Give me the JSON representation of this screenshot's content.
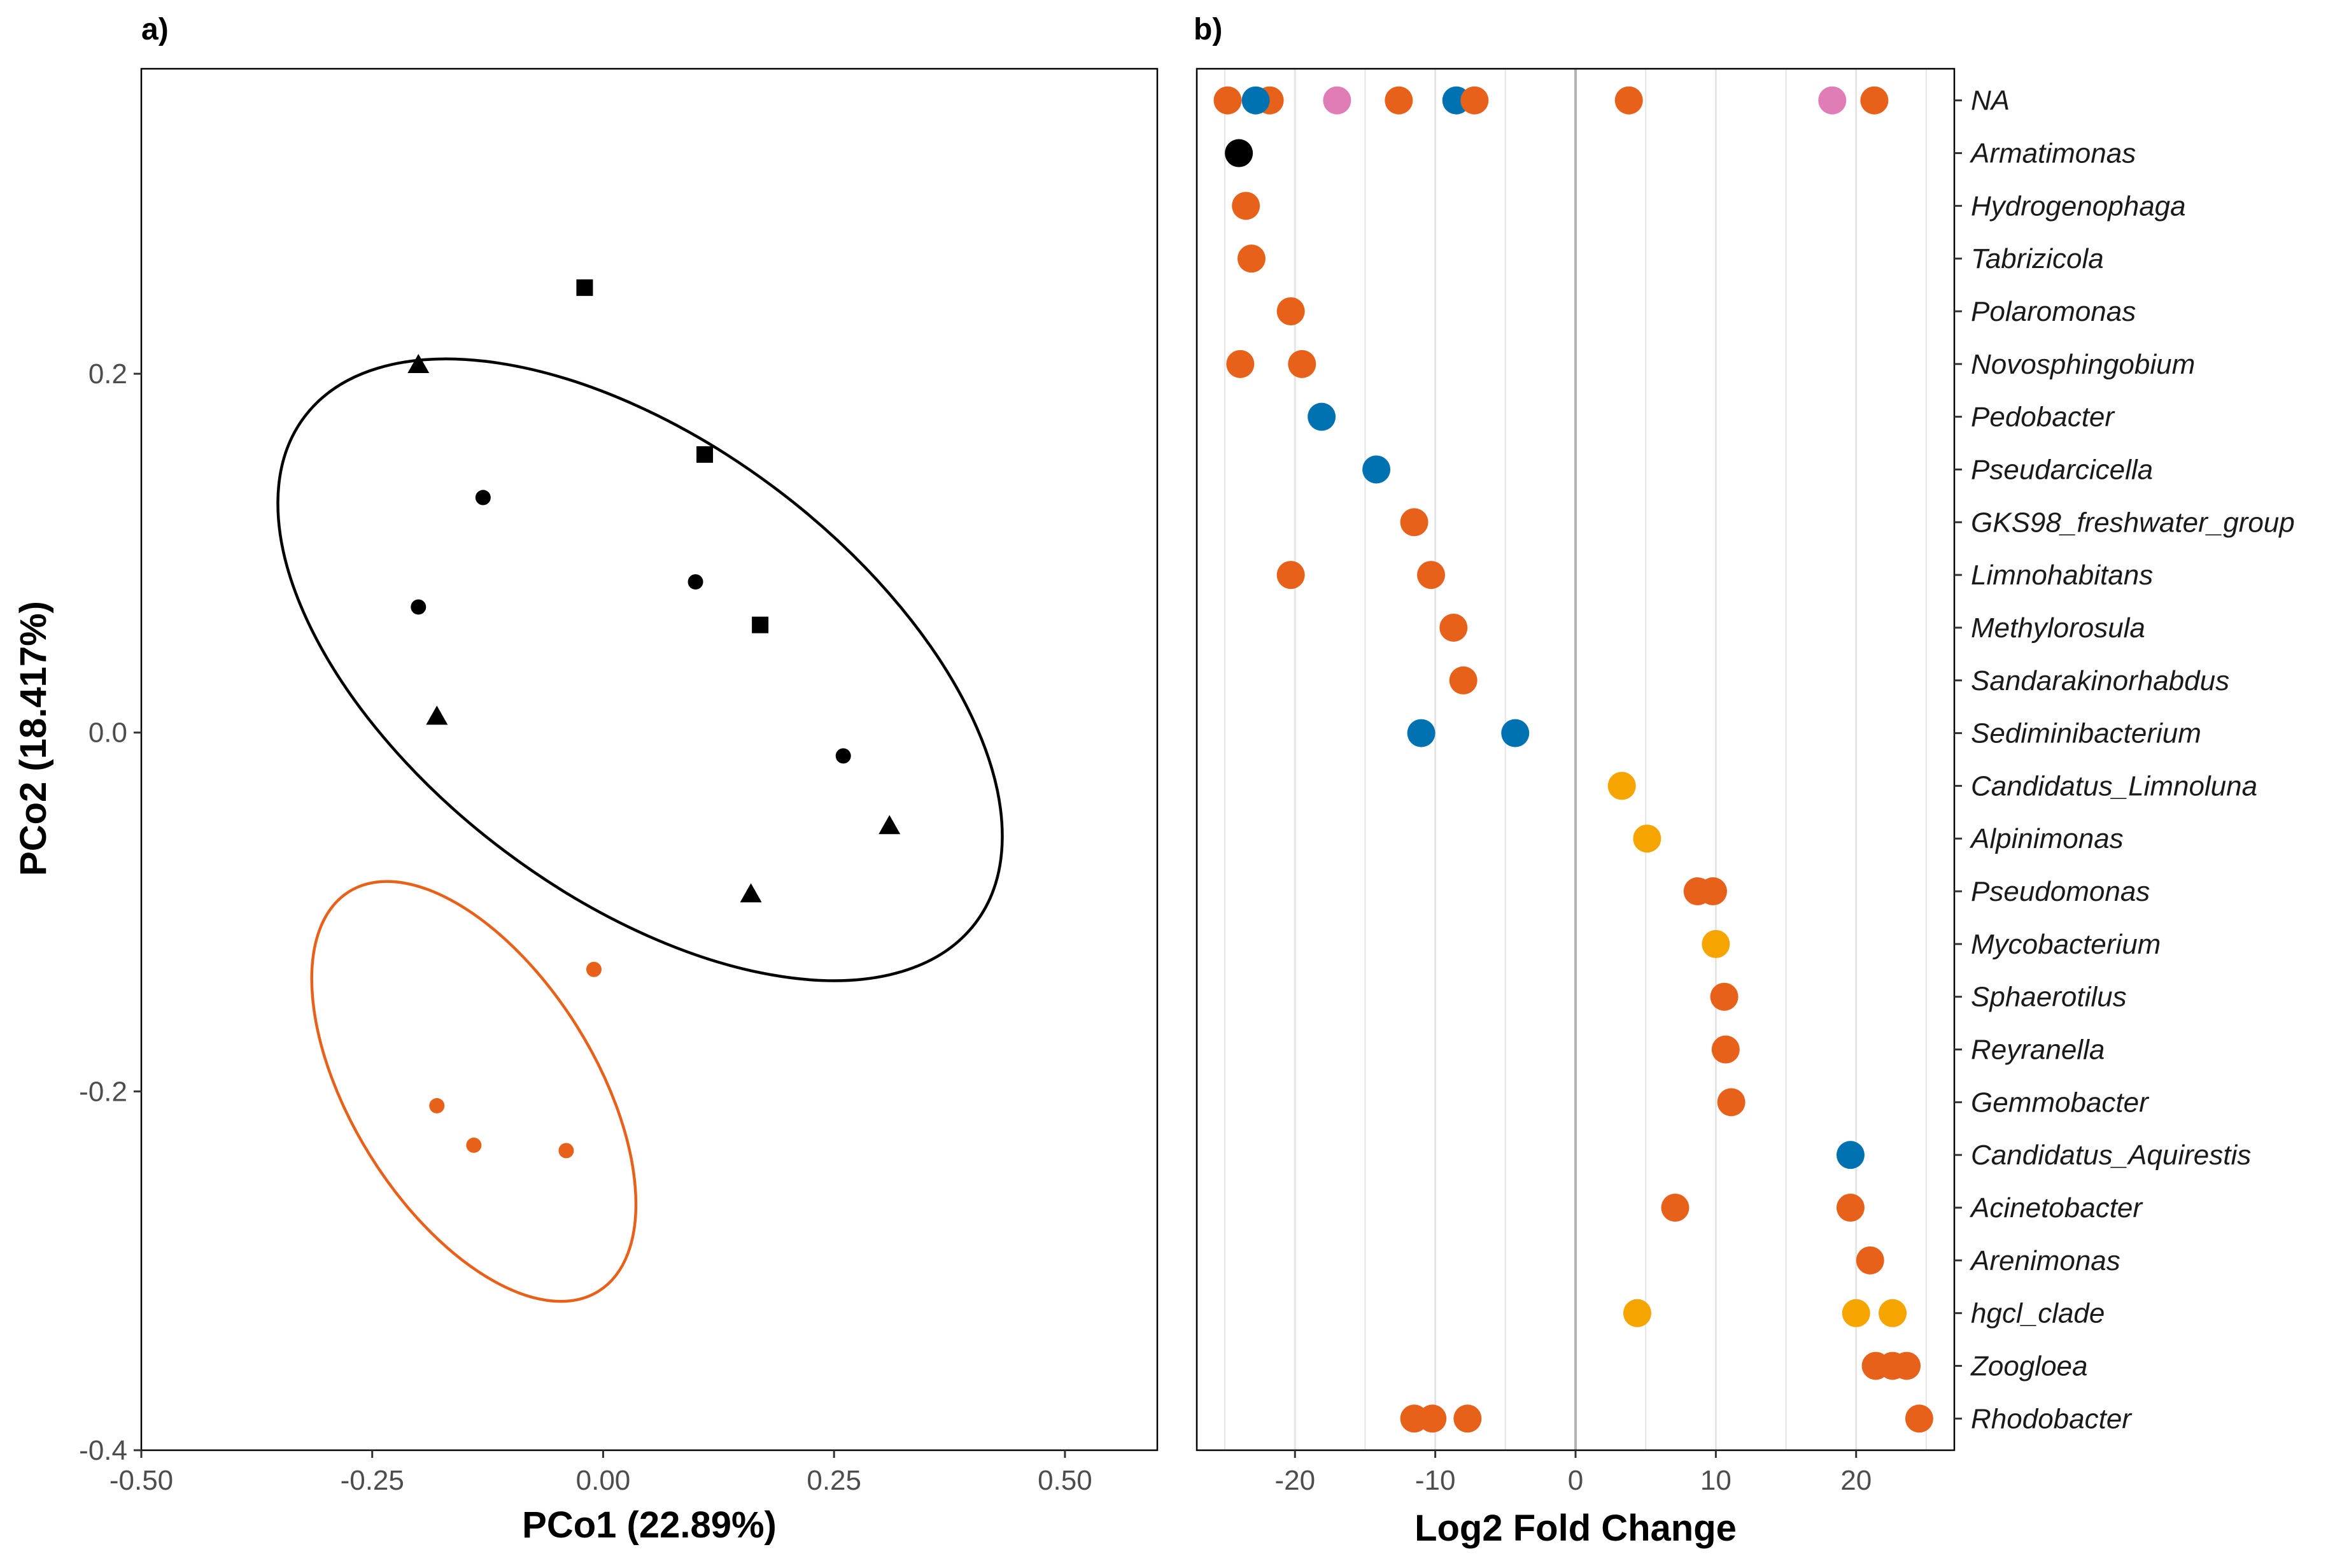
{
  "panels": {
    "a": "a)",
    "b": "b)"
  },
  "colors": {
    "black": "#000000",
    "orange": "#e8611a",
    "blue": "#0072b2",
    "pink": "#e07cb6",
    "amber": "#f5a400",
    "grid": "#e5e5e5",
    "zero_line": "#b3b3b3"
  },
  "chart_data": [
    {
      "type": "scatter",
      "panel": "a)",
      "xlabel": "PCo1 (22.89%)",
      "ylabel": "PCo2 (18.417%)",
      "xlim": [
        -0.5,
        0.6
      ],
      "ylim": [
        -0.4,
        0.37
      ],
      "xticks": [
        -0.5,
        -0.25,
        0.0,
        0.25,
        0.5
      ],
      "xtick_labels": [
        "-0.50",
        "-0.25",
        "0.00",
        "0.25",
        "0.50"
      ],
      "yticks": [
        -0.4,
        -0.2,
        0.0,
        0.2
      ],
      "ytick_labels": [
        "-0.4",
        "-0.2",
        "0.0",
        "0.2"
      ],
      "grid": false,
      "points": [
        {
          "x": -0.02,
          "y": 0.248,
          "shape": "square",
          "color": "black"
        },
        {
          "x": 0.11,
          "y": 0.155,
          "shape": "square",
          "color": "black"
        },
        {
          "x": 0.17,
          "y": 0.06,
          "shape": "square",
          "color": "black"
        },
        {
          "x": -0.2,
          "y": 0.205,
          "shape": "triangle",
          "color": "black"
        },
        {
          "x": -0.18,
          "y": 0.009,
          "shape": "triangle",
          "color": "black"
        },
        {
          "x": 0.31,
          "y": -0.052,
          "shape": "triangle",
          "color": "black"
        },
        {
          "x": 0.16,
          "y": -0.09,
          "shape": "triangle",
          "color": "black"
        },
        {
          "x": -0.13,
          "y": 0.131,
          "shape": "circle",
          "color": "black"
        },
        {
          "x": -0.2,
          "y": 0.07,
          "shape": "circle",
          "color": "black"
        },
        {
          "x": 0.1,
          "y": 0.084,
          "shape": "circle",
          "color": "black"
        },
        {
          "x": 0.26,
          "y": -0.013,
          "shape": "circle",
          "color": "black"
        },
        {
          "x": -0.01,
          "y": -0.132,
          "shape": "circle",
          "color": "orange"
        },
        {
          "x": -0.18,
          "y": -0.208,
          "shape": "circle",
          "color": "orange"
        },
        {
          "x": -0.14,
          "y": -0.23,
          "shape": "circle",
          "color": "orange"
        },
        {
          "x": -0.04,
          "y": -0.233,
          "shape": "circle",
          "color": "orange"
        }
      ],
      "ellipses": [
        {
          "color": "black",
          "cx": 0.04,
          "cy": 0.035,
          "rx": 0.455,
          "ry": 0.245,
          "angle_deg": 37
        },
        {
          "color": "orange",
          "cx": -0.14,
          "cy": -0.2,
          "rx": 0.255,
          "ry": 0.132,
          "angle_deg": 58
        }
      ]
    },
    {
      "type": "scatter",
      "panel": "b)",
      "xlabel": "Log2 Fold Change",
      "ylabel": "",
      "xlim": [
        -27,
        27
      ],
      "xticks": [
        -20,
        -10,
        0,
        10,
        20
      ],
      "xtick_labels": [
        "-20",
        "-10",
        "0",
        "10",
        "20"
      ],
      "grid": true,
      "zero_line": true,
      "categories": [
        "NA",
        "Armatimonas",
        "Hydrogenophaga",
        "Tabrizicola",
        "Polaromonas",
        "Novosphingobium",
        "Pedobacter",
        "Pseudarcicella",
        "GKS98_freshwater_group",
        "Limnohabitans",
        "Methylorosula",
        "Sandarakinorhabdus",
        "Sediminibacterium",
        "Candidatus_Limnoluna",
        "Alpinimonas",
        "Pseudomonas",
        "Mycobacterium",
        "Sphaerotilus",
        "Reyranella",
        "Gemmobacter",
        "Candidatus_Aquirestis",
        "Acinetobacter",
        "Arenimonas",
        "hgcl_clade",
        "Zoogloea",
        "Rhodobacter"
      ],
      "points": [
        {
          "category": "NA",
          "x": -24.8,
          "color": "orange"
        },
        {
          "category": "NA",
          "x": -21.8,
          "color": "orange"
        },
        {
          "category": "NA",
          "x": -22.8,
          "color": "blue"
        },
        {
          "category": "NA",
          "x": -17.0,
          "color": "pink"
        },
        {
          "category": "NA",
          "x": -12.6,
          "color": "orange"
        },
        {
          "category": "NA",
          "x": -8.5,
          "color": "blue"
        },
        {
          "category": "NA",
          "x": -7.2,
          "color": "orange"
        },
        {
          "category": "NA",
          "x": 3.8,
          "color": "orange"
        },
        {
          "category": "NA",
          "x": 18.3,
          "color": "pink"
        },
        {
          "category": "NA",
          "x": 21.3,
          "color": "orange"
        },
        {
          "category": "Armatimonas",
          "x": -24.0,
          "color": "black"
        },
        {
          "category": "Hydrogenophaga",
          "x": -23.5,
          "color": "orange"
        },
        {
          "category": "Tabrizicola",
          "x": -23.1,
          "color": "orange"
        },
        {
          "category": "Polaromonas",
          "x": -20.3,
          "color": "orange"
        },
        {
          "category": "Novosphingobium",
          "x": -23.9,
          "color": "orange"
        },
        {
          "category": "Novosphingobium",
          "x": -19.5,
          "color": "orange"
        },
        {
          "category": "Pedobacter",
          "x": -18.1,
          "color": "blue"
        },
        {
          "category": "Pseudarcicella",
          "x": -14.2,
          "color": "blue"
        },
        {
          "category": "GKS98_freshwater_group",
          "x": -11.5,
          "color": "orange"
        },
        {
          "category": "Limnohabitans",
          "x": -20.3,
          "color": "orange"
        },
        {
          "category": "Limnohabitans",
          "x": -10.3,
          "color": "orange"
        },
        {
          "category": "Methylorosula",
          "x": -8.7,
          "color": "orange"
        },
        {
          "category": "Sandarakinorhabdus",
          "x": -8.0,
          "color": "orange"
        },
        {
          "category": "Sediminibacterium",
          "x": -11.0,
          "color": "blue"
        },
        {
          "category": "Sediminibacterium",
          "x": -4.3,
          "color": "blue"
        },
        {
          "category": "Candidatus_Limnoluna",
          "x": 3.3,
          "color": "amber"
        },
        {
          "category": "Alpinimonas",
          "x": 5.1,
          "color": "amber"
        },
        {
          "category": "Pseudomonas",
          "x": 8.7,
          "color": "orange"
        },
        {
          "category": "Pseudomonas",
          "x": 9.8,
          "color": "orange"
        },
        {
          "category": "Mycobacterium",
          "x": 10.0,
          "color": "amber"
        },
        {
          "category": "Sphaerotilus",
          "x": 10.6,
          "color": "orange"
        },
        {
          "category": "Reyranella",
          "x": 10.7,
          "color": "orange"
        },
        {
          "category": "Gemmobacter",
          "x": 11.1,
          "color": "orange"
        },
        {
          "category": "Candidatus_Aquirestis",
          "x": 19.6,
          "color": "blue"
        },
        {
          "category": "Acinetobacter",
          "x": 7.1,
          "color": "orange"
        },
        {
          "category": "Acinetobacter",
          "x": 19.6,
          "color": "orange"
        },
        {
          "category": "Arenimonas",
          "x": 21.0,
          "color": "orange"
        },
        {
          "category": "hgcl_clade",
          "x": 4.4,
          "color": "amber"
        },
        {
          "category": "hgcl_clade",
          "x": 20.0,
          "color": "amber"
        },
        {
          "category": "hgcl_clade",
          "x": 22.6,
          "color": "amber"
        },
        {
          "category": "Zoogloea",
          "x": 21.4,
          "color": "orange"
        },
        {
          "category": "Zoogloea",
          "x": 22.6,
          "color": "orange"
        },
        {
          "category": "Zoogloea",
          "x": 23.6,
          "color": "orange"
        },
        {
          "category": "Rhodobacter",
          "x": -11.5,
          "color": "orange"
        },
        {
          "category": "Rhodobacter",
          "x": -10.2,
          "color": "orange"
        },
        {
          "category": "Rhodobacter",
          "x": -7.7,
          "color": "orange"
        },
        {
          "category": "Rhodobacter",
          "x": 24.5,
          "color": "orange"
        }
      ]
    }
  ]
}
